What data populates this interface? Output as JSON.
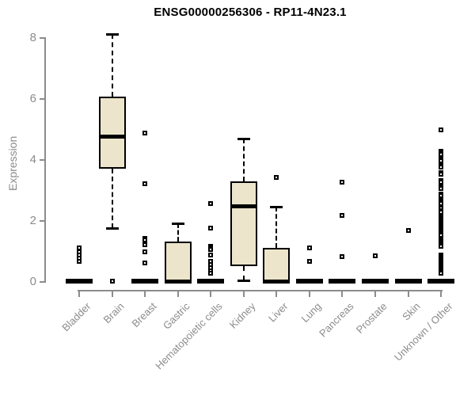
{
  "chart_data": {
    "type": "boxplot",
    "title": "ENSG00000256306 - RP11-4N23.1",
    "ylabel": "Expression",
    "xlabel": "",
    "ylim": [
      0,
      8
    ],
    "yticks": [
      0,
      2,
      4,
      6,
      8
    ],
    "grid": false,
    "legend": null,
    "categories": [
      "Bladder",
      "Brain",
      "Breast",
      "Gastric",
      "Hematopoietic cells",
      "Kidney",
      "Liver",
      "Lung",
      "Pancreas",
      "Prostate",
      "Skin",
      "Unknown / Other"
    ],
    "series": [
      {
        "name": "Bladder",
        "whisker_low": 0,
        "q1": 0,
        "median": 0,
        "q3": 0,
        "whisker_high": 0,
        "outliers": [
          1.1,
          1.0,
          0.95,
          0.85,
          0.75,
          0.65
        ]
      },
      {
        "name": "Brain",
        "whisker_low": 1.75,
        "q1": 3.7,
        "median": 4.75,
        "q3": 6.05,
        "whisker_high": 8.1,
        "outliers": [
          0
        ]
      },
      {
        "name": "Breast",
        "whisker_low": 0,
        "q1": 0,
        "median": 0,
        "q3": 0,
        "whisker_high": 0,
        "outliers": [
          4.85,
          3.2,
          1.4,
          1.35,
          1.25,
          1.2,
          0.95,
          0.6
        ]
      },
      {
        "name": "Gastric",
        "whisker_low": 0,
        "q1": 0,
        "median": 0,
        "q3": 1.3,
        "whisker_high": 1.9,
        "outliers": []
      },
      {
        "name": "Hematopoietic cells",
        "whisker_low": 0,
        "q1": 0,
        "median": 0,
        "q3": 0,
        "whisker_high": 0,
        "outliers": [
          2.55,
          1.75,
          1.15,
          1.1,
          1.05,
          0.85,
          0.65,
          0.55,
          0.45,
          0.35,
          0.25
        ]
      },
      {
        "name": "Kidney",
        "whisker_low": 0.02,
        "q1": 0.5,
        "median": 2.45,
        "q3": 3.27,
        "whisker_high": 4.68,
        "outliers": []
      },
      {
        "name": "Liver",
        "whisker_low": 0,
        "q1": 0,
        "median": 0,
        "q3": 1.1,
        "whisker_high": 2.45,
        "outliers": [
          3.4
        ]
      },
      {
        "name": "Lung",
        "whisker_low": 0,
        "q1": 0,
        "median": 0,
        "q3": 0,
        "whisker_high": 0,
        "outliers": [
          1.1,
          0.65
        ]
      },
      {
        "name": "Pancreas",
        "whisker_low": 0,
        "q1": 0,
        "median": 0,
        "q3": 0,
        "whisker_high": 0,
        "outliers": [
          3.25,
          2.15,
          0.8
        ]
      },
      {
        "name": "Prostate",
        "whisker_low": 0,
        "q1": 0,
        "median": 0,
        "q3": 0,
        "whisker_high": 0,
        "outliers": [
          0.83
        ]
      },
      {
        "name": "Skin",
        "whisker_low": 0,
        "q1": 0,
        "median": 0,
        "q3": 0,
        "whisker_high": 0,
        "outliers": [
          1.65
        ]
      },
      {
        "name": "Unknown / Other",
        "whisker_low": 0,
        "q1": 0,
        "median": 0,
        "q3": 0,
        "whisker_high": 0,
        "outliers": [
          4.95,
          4.25,
          4.2,
          4.15,
          4.0,
          3.95,
          3.8,
          3.75,
          3.55,
          3.5,
          3.3,
          3.25,
          3.1,
          3.05,
          2.85,
          2.8,
          2.65,
          2.6,
          2.55,
          2.45,
          2.4,
          2.3,
          2.25,
          2.15,
          2.1,
          2.05,
          2.0,
          1.95,
          1.9,
          1.85,
          1.8,
          1.75,
          1.7,
          1.65,
          1.6,
          1.55,
          1.5,
          1.35,
          1.3,
          1.25,
          1.2,
          1.15,
          0.85,
          0.8,
          0.75,
          0.7,
          0.65,
          0.6,
          0.55,
          0.5,
          0.45,
          0.4,
          0.35,
          0.3,
          0.25
        ]
      }
    ],
    "colors": {
      "box_fill": "#ece5cb",
      "box_border": "#000000",
      "median": "#000000",
      "whisker": "#000000",
      "outlier_border": "#000000",
      "outlier_fill": "#ffffff",
      "axis": "#8c8c8c",
      "title": "#000000",
      "background": "#ffffff"
    }
  }
}
